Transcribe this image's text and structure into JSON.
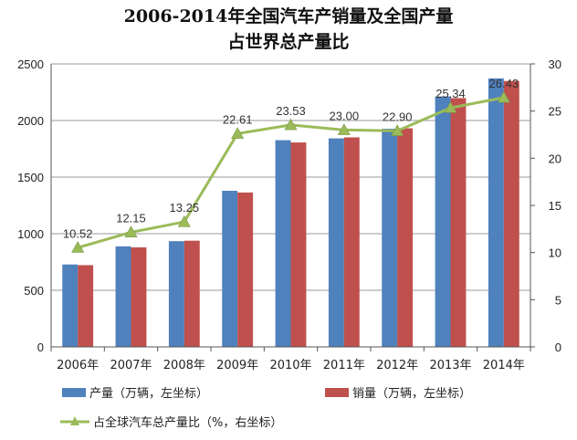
{
  "chart_data": {
    "type": "bar",
    "title": [
      "2006-2014年全国汽车产销量及全国产量",
      "占世界总产量比"
    ],
    "categories": [
      "2006年",
      "2007年",
      "2008年",
      "2009年",
      "2010年",
      "2011年",
      "2012年",
      "2013年",
      "2014年"
    ],
    "series": [
      {
        "name": "产量（万辆，左坐标）",
        "type": "bar",
        "axis": "left",
        "color": "#4F81BD",
        "values": [
          728,
          888,
          934,
          1379,
          1826,
          1842,
          1927,
          2212,
          2372
        ]
      },
      {
        "name": "销量（万辆，左坐标）",
        "type": "bar",
        "axis": "left",
        "color": "#C0504D",
        "values": [
          722,
          879,
          938,
          1364,
          1806,
          1851,
          1931,
          2198,
          2349
        ]
      },
      {
        "name": "占全球汽车总产量比（%，右坐标）",
        "type": "line",
        "axis": "right",
        "color": "#9BBB59",
        "values": [
          10.52,
          12.15,
          13.25,
          22.61,
          23.53,
          23.0,
          22.9,
          25.34,
          26.43
        ],
        "labels": [
          "10.52",
          "12.15",
          "13.25",
          "22.61",
          "23.53",
          "23.00",
          "22.90",
          "25.34",
          "26.43"
        ]
      }
    ],
    "y_left": {
      "min": 0,
      "max": 2500,
      "ticks": [
        "0",
        "500",
        "1000",
        "1500",
        "2000",
        "2500"
      ]
    },
    "y_right": {
      "min": 0,
      "max": 30,
      "ticks": [
        "0",
        "5",
        "10",
        "15",
        "20",
        "25",
        "30"
      ]
    },
    "grid": true,
    "legend_position": "bottom"
  }
}
